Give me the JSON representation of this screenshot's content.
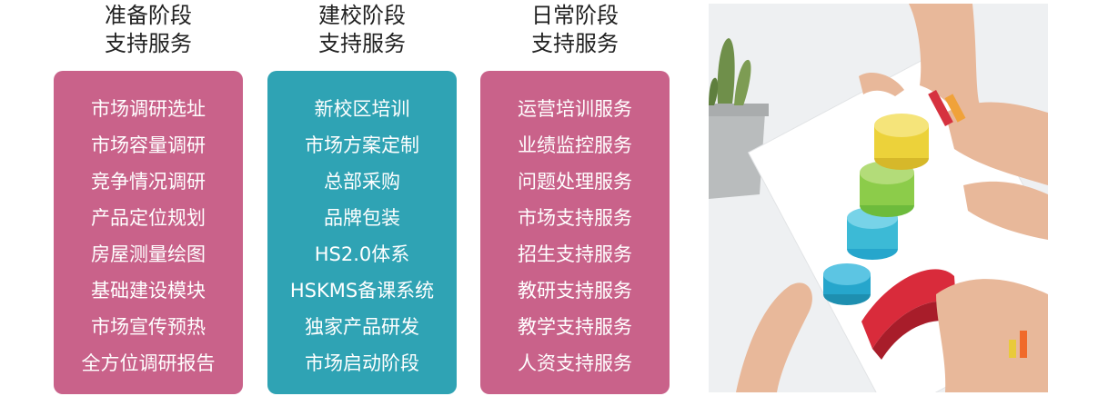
{
  "columns": [
    {
      "heading_line1": "准备阶段",
      "heading_line2": "支持服务",
      "color": "#c9628a",
      "items": [
        "市场调研选址",
        "市场容量调研",
        "竞争情况调研",
        "产品定位规划",
        "房屋测量绘图",
        "基础建设模块",
        "市场宣传预热",
        "全方位调研报告"
      ]
    },
    {
      "heading_line1": "建校阶段",
      "heading_line2": "支持服务",
      "color": "#2fa3b4",
      "items": [
        "新校区培训",
        "市场方案定制",
        "总部采购",
        "品牌包装",
        "HS2.0体系",
        "HSKMS备课系统",
        "独家产品研发",
        "市场启动阶段"
      ]
    },
    {
      "heading_line1": "日常阶段",
      "heading_line2": "支持服务",
      "color": "#c9628a",
      "items": [
        "运营培训服务",
        "业绩监控服务",
        "问题处理服务",
        "市场支持服务",
        "招生支持服务",
        "教研支持服务",
        "教学支持服务",
        "人资支持服务"
      ]
    }
  ],
  "photo": {
    "subject_icon": "business-chart-photo"
  }
}
